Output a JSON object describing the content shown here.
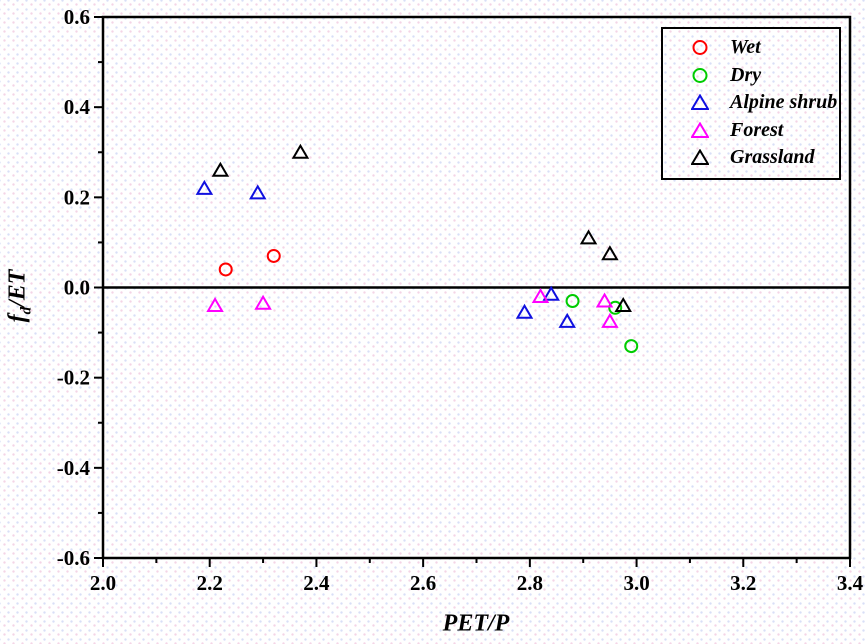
{
  "chart_data": {
    "type": "scatter",
    "title": "",
    "xlabel": "PET/P",
    "ylabel": "f_d/ET",
    "ylabel_parts": {
      "base": "f",
      "sub": "d",
      "rest": "/ET"
    },
    "xlim": [
      2.0,
      3.4
    ],
    "ylim": [
      -0.6,
      0.6
    ],
    "x_major_ticks": [
      2.0,
      2.2,
      2.4,
      2.6,
      2.8,
      3.0,
      3.2,
      3.4
    ],
    "x_minor_ticks": [
      2.1,
      2.3,
      2.5,
      2.7,
      2.9,
      3.1,
      3.3
    ],
    "y_major_ticks": [
      -0.6,
      -0.4,
      -0.2,
      0.0,
      0.2,
      0.4,
      0.6
    ],
    "y_minor_ticks": [
      -0.5,
      -0.3,
      -0.1,
      0.1,
      0.3,
      0.5
    ],
    "tick_decimals": 1,
    "grid": false,
    "zero_line": true,
    "legend_position": "top-right",
    "axis_color": "#000000",
    "series": [
      {
        "name": "Wet",
        "marker": "circle",
        "color": "#ff0000",
        "points": [
          [
            2.23,
            0.04
          ],
          [
            2.32,
            0.07
          ]
        ]
      },
      {
        "name": "Dry",
        "marker": "circle",
        "color": "#00cc00",
        "points": [
          [
            2.88,
            -0.03
          ],
          [
            2.96,
            -0.045
          ],
          [
            2.99,
            -0.13
          ]
        ]
      },
      {
        "name": "Alpine shrub",
        "marker": "triangle",
        "color": "#1010e0",
        "points": [
          [
            2.19,
            0.22
          ],
          [
            2.29,
            0.21
          ],
          [
            2.79,
            -0.055
          ],
          [
            2.84,
            -0.015
          ],
          [
            2.87,
            -0.075
          ]
        ]
      },
      {
        "name": "Forest",
        "marker": "triangle",
        "color": "#ff00ff",
        "points": [
          [
            2.21,
            -0.04
          ],
          [
            2.3,
            -0.035
          ],
          [
            2.82,
            -0.02
          ],
          [
            2.94,
            -0.03
          ],
          [
            2.95,
            -0.075
          ]
        ]
      },
      {
        "name": "Grassland",
        "marker": "triangle",
        "color": "#000000",
        "points": [
          [
            2.22,
            0.26
          ],
          [
            2.37,
            0.3
          ],
          [
            2.91,
            0.11
          ],
          [
            2.95,
            0.075
          ],
          [
            2.975,
            -0.04
          ]
        ]
      }
    ]
  }
}
